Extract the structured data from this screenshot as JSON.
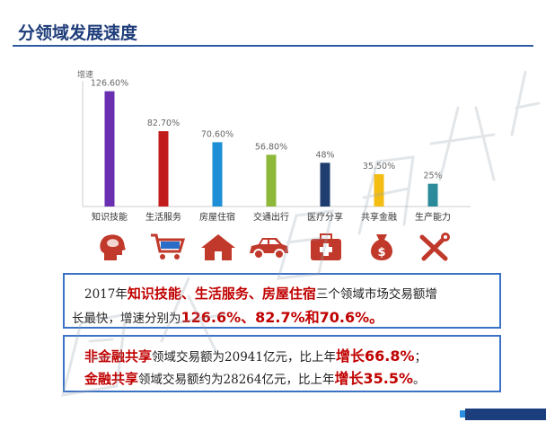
{
  "header": {
    "title": "分领域发展速度"
  },
  "colors": {
    "title": "#1f3d7a",
    "text_red": "#c00000",
    "box_border": "#3b72c6",
    "icon_red": "#c0392b"
  },
  "chart_data": {
    "type": "bar",
    "ylabel": "增速",
    "ylim": [
      0,
      140
    ],
    "categories": [
      "知识技能",
      "生活服务",
      "房屋住宿",
      "交通出行",
      "医疗分享",
      "共享金融",
      "生产能力"
    ],
    "values": [
      126.6,
      82.7,
      70.6,
      56.8,
      48,
      35.5,
      25
    ],
    "value_labels": [
      "126.60%",
      "82.70%",
      "70.60%",
      "56.80%",
      "48%",
      "35.50%",
      "25%"
    ],
    "colors": [
      "#6a2fb1",
      "#c21b1b",
      "#1e8fd6",
      "#8db83a",
      "#1f3d6e",
      "#f4bd13",
      "#2c8b9b"
    ],
    "grid": false,
    "legend": "none"
  },
  "icons": [
    "brain-head-icon",
    "shopping-cart-icon",
    "house-icon",
    "car-icon",
    "medical-kit-icon",
    "money-bag-icon",
    "tools-icon"
  ],
  "summary1": {
    "prefix": "2017年",
    "highlight": "知识技能、生活服务、房屋住宿",
    "middle": "三个领域市场交易额增",
    "line2_prefix": "长最快，增速分别为",
    "rates": "126.6%、82.7%和70.6%。"
  },
  "summary2": {
    "line1_label": "非金融共享",
    "line1_mid": "领域交易额为20941亿元，比上年",
    "line1_growth": "增长66.8%",
    "line1_end": "；",
    "line2_label": "金融共享",
    "line2_mid": "领域交易额约为28264亿元，比上年",
    "line2_growth": "增长35.5%",
    "line2_end": "。"
  }
}
